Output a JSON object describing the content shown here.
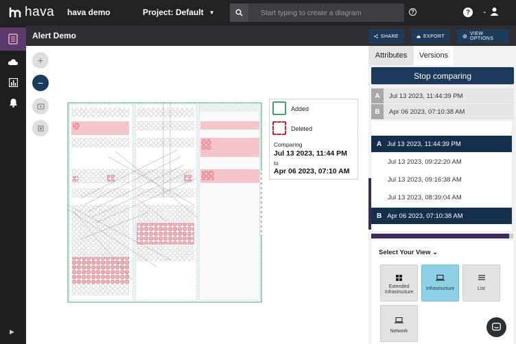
{
  "topbar": {
    "brand": "hava",
    "workspace": "hava demo",
    "project": "Project: Default",
    "search_placeholder": "Start typing to create a diagram"
  },
  "subheader": {
    "title": "Alert Demo",
    "share": "SHARE",
    "export": "EXPORT",
    "view_options": "VIEW OPTIONS"
  },
  "legend": {
    "added": "Added",
    "deleted": "Deleted",
    "comparing": "Comparing",
    "from_date": "Jul 13 2023, 11:44 PM",
    "to": "to",
    "to_date": "Apr 06 2023, 07:10 AM"
  },
  "panel": {
    "tabs": [
      "Attributes",
      "Versions"
    ],
    "stop_comparing": "Stop comparing",
    "compare": [
      {
        "tag": "A",
        "date": "Jul 13 2023, 11:44:39 PM"
      },
      {
        "tag": "B",
        "date": "Apr 06 2023, 07:10:38 AM"
      }
    ],
    "versions": [
      {
        "tag": "A",
        "date": "Jul 13 2023, 11:44:39 PM",
        "selected": true
      },
      {
        "tag": "",
        "date": "Jul 13 2023, 09:22:20 AM",
        "selected": false
      },
      {
        "tag": "",
        "date": "Jul 13 2023, 09:16:38 AM",
        "selected": false
      },
      {
        "tag": "",
        "date": "Jul 13 2023, 08:39:04 AM",
        "selected": false
      },
      {
        "tag": "B",
        "date": "Apr 06 2023, 07:10:38 AM",
        "selected": true
      }
    ],
    "select_view": "Select Your View",
    "views": [
      {
        "label": "Extended Infrastructure",
        "icon": "extended-infrastructure-icon",
        "selected": false
      },
      {
        "label": "Infrastructure",
        "icon": "infrastructure-icon",
        "selected": true
      },
      {
        "label": "List",
        "icon": "list-icon",
        "selected": false
      },
      {
        "label": "Network",
        "icon": "network-icon",
        "selected": false
      }
    ]
  },
  "colors": {
    "accent": "#1b3a5c",
    "added": "#3aa862",
    "deleted": "#d0212b",
    "nav_active": "#5a3b6b",
    "view_selected": "#8ed0e6"
  }
}
